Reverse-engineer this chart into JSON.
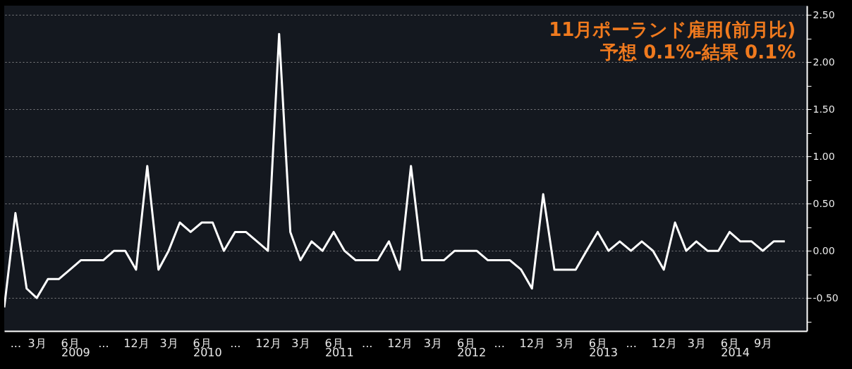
{
  "chart_data": {
    "type": "line",
    "title": "11月ポーランド雇用(前月比)",
    "subtitle": "予想  0.1%-結果  0.1%",
    "x": [
      "2008-12",
      "2009-01",
      "2009-02",
      "2009-03",
      "2009-04",
      "2009-05",
      "2009-06",
      "2009-07",
      "2009-08",
      "2009-09",
      "2009-10",
      "2009-11",
      "2009-12",
      "2010-01",
      "2010-02",
      "2010-03",
      "2010-04",
      "2010-05",
      "2010-06",
      "2010-07",
      "2010-08",
      "2010-09",
      "2010-10",
      "2010-11",
      "2010-12",
      "2011-01",
      "2011-02",
      "2011-03",
      "2011-04",
      "2011-05",
      "2011-06",
      "2011-07",
      "2011-08",
      "2011-09",
      "2011-10",
      "2011-11",
      "2011-12",
      "2012-01",
      "2012-02",
      "2012-03",
      "2012-04",
      "2012-05",
      "2012-06",
      "2012-07",
      "2012-08",
      "2012-09",
      "2012-10",
      "2012-11",
      "2012-12",
      "2013-01",
      "2013-02",
      "2013-03",
      "2013-04",
      "2013-05",
      "2013-06",
      "2013-07",
      "2013-08",
      "2013-09",
      "2013-10",
      "2013-11",
      "2013-12",
      "2014-01",
      "2014-02",
      "2014-03",
      "2014-04",
      "2014-05",
      "2014-06",
      "2014-07",
      "2014-08",
      "2014-09",
      "2014-10",
      "2014-11"
    ],
    "values": [
      -0.6,
      0.4,
      -0.4,
      -0.5,
      -0.3,
      -0.3,
      -0.2,
      -0.1,
      -0.1,
      -0.1,
      0,
      0,
      -0.2,
      0.9,
      -0.2,
      0,
      0.3,
      0.2,
      0.3,
      0.3,
      0,
      0.2,
      0.2,
      0.1,
      0,
      2.3,
      0.2,
      -0.1,
      0.1,
      0,
      0.2,
      0,
      -0.1,
      -0.1,
      -0.1,
      0.1,
      -0.2,
      0.9,
      -0.1,
      -0.1,
      -0.1,
      0,
      0,
      0,
      -0.1,
      -0.1,
      -0.1,
      -0.2,
      -0.4,
      0.6,
      -0.2,
      -0.2,
      -0.2,
      0,
      0.2,
      0,
      0.1,
      0,
      0.1,
      0,
      -0.2,
      0.3,
      0,
      0.1,
      0,
      0,
      0.2,
      0.1,
      0.1,
      0,
      0.1,
      0.1
    ],
    "color": "#ffffff",
    "line_style": "solid",
    "grid": true,
    "xlim": [
      "2008-12",
      "2015-01"
    ],
    "xticks": [
      {
        "value": "2009-01",
        "label": "..."
      },
      {
        "value": "2009-03",
        "label": "3月"
      },
      {
        "value": "2009-06",
        "label": "6月"
      },
      {
        "value": "2009-09",
        "label": "..."
      },
      {
        "value": "2009-12",
        "label": "12月"
      },
      {
        "value": "2010-03",
        "label": "3月"
      },
      {
        "value": "2010-06",
        "label": "6月"
      },
      {
        "value": "2010-09",
        "label": "..."
      },
      {
        "value": "2010-12",
        "label": "12月"
      },
      {
        "value": "2011-03",
        "label": "3月"
      },
      {
        "value": "2011-06",
        "label": "6月"
      },
      {
        "value": "2011-09",
        "label": "..."
      },
      {
        "value": "2011-12",
        "label": "12月"
      },
      {
        "value": "2012-03",
        "label": "3月"
      },
      {
        "value": "2012-06",
        "label": "6月"
      },
      {
        "value": "2012-09",
        "label": "..."
      },
      {
        "value": "2012-12",
        "label": "12月"
      },
      {
        "value": "2013-03",
        "label": "3月"
      },
      {
        "value": "2013-06",
        "label": "6月"
      },
      {
        "value": "2013-09",
        "label": "..."
      },
      {
        "value": "2013-12",
        "label": "12月"
      },
      {
        "value": "2014-03",
        "label": "3月"
      },
      {
        "value": "2014-06",
        "label": "6月"
      },
      {
        "value": "2014-09",
        "label": "9月"
      }
    ],
    "x2lim": [
      "2008-12",
      "2015-01"
    ],
    "x2ticks": [
      {
        "value": "2009-06-16",
        "label": "2009"
      },
      {
        "value": "2010-06-16",
        "label": "2010"
      },
      {
        "value": "2011-06-16",
        "label": "2011"
      },
      {
        "value": "2012-06-16",
        "label": "2012"
      },
      {
        "value": "2013-06-16",
        "label": "2013"
      },
      {
        "value": "2014-06-16",
        "label": "2014"
      }
    ],
    "ylim": [
      -0.85,
      2.6
    ],
    "yticks": [
      {
        "value": -0.75,
        "label": null
      },
      {
        "value": -0.5,
        "label": "-0.50"
      },
      {
        "value": -0.25,
        "label": null
      },
      {
        "value": 0,
        "label": "0.00"
      },
      {
        "value": 0.25,
        "label": null
      },
      {
        "value": 0.5,
        "label": "0.50"
      },
      {
        "value": 0.75,
        "label": null
      },
      {
        "value": 1,
        "label": "1.00"
      },
      {
        "value": 1.25,
        "label": null
      },
      {
        "value": 1.5,
        "label": "1.50"
      },
      {
        "value": 1.75,
        "label": null
      },
      {
        "value": 2,
        "label": "2.00"
      },
      {
        "value": 2.25,
        "label": null
      },
      {
        "value": 2.5,
        "label": "2.50"
      }
    ]
  }
}
